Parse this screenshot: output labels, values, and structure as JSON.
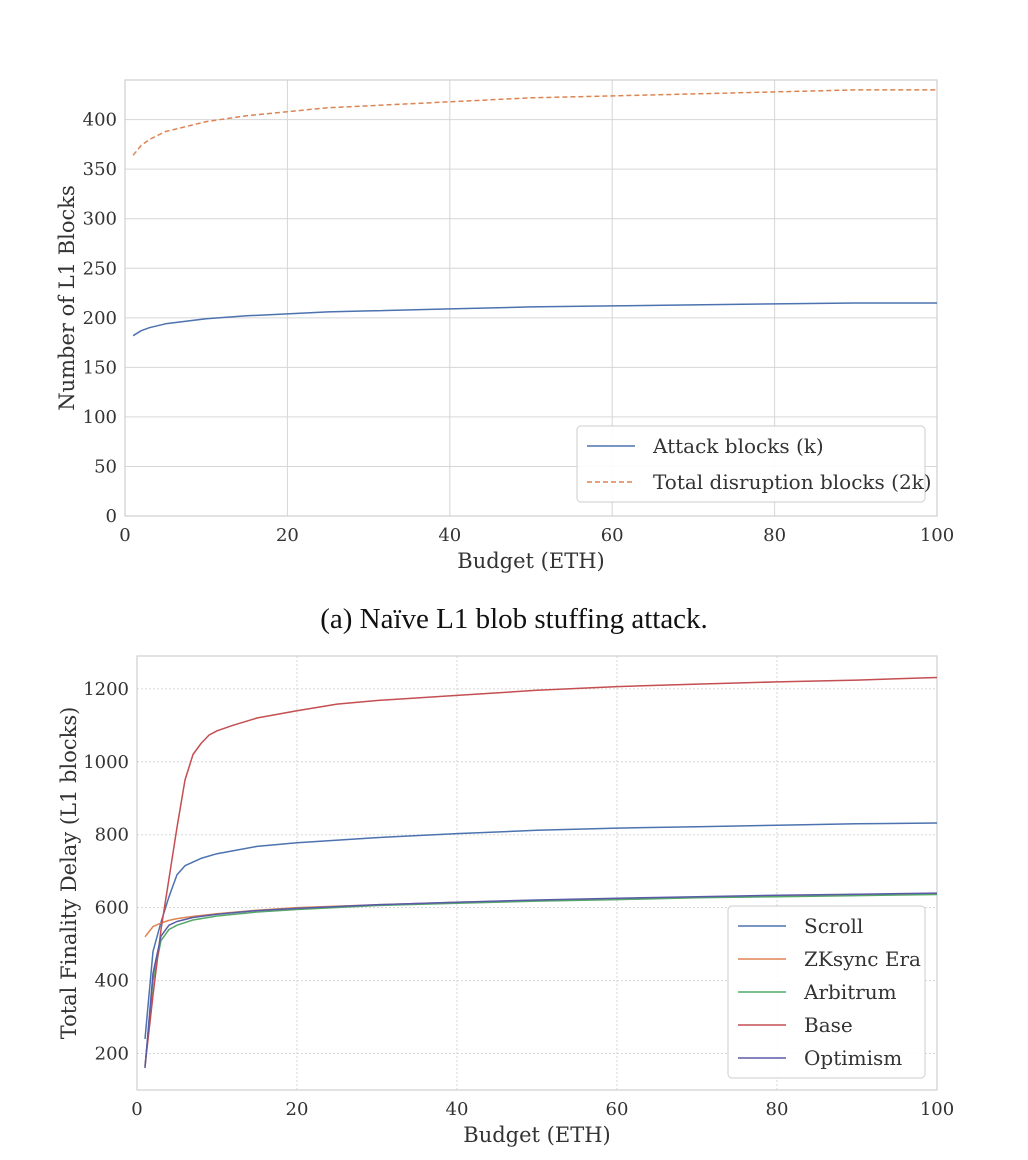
{
  "caption_a": "(a) Naïve L1 blob stuffing attack.",
  "chart_data": [
    {
      "id": "a",
      "type": "line",
      "title": "",
      "xlabel": "Budget (ETH)",
      "ylabel": "Number of L1 Blocks",
      "xlim": [
        0,
        100
      ],
      "ylim": [
        0,
        440
      ],
      "xticks": [
        0,
        20,
        40,
        60,
        80,
        100
      ],
      "yticks": [
        0,
        50,
        100,
        150,
        200,
        250,
        300,
        350,
        400
      ],
      "grid": true,
      "legend": "bottom-right",
      "colors": {
        "line1": "#4c72b0",
        "line2": "#dd8452",
        "grid": "#d6d6d6",
        "axis": "#cfcfcf"
      },
      "series": [
        {
          "name": "Attack blocks (k)",
          "style": "solid",
          "color": "#4c72b0",
          "x": [
            1,
            2,
            3,
            5,
            7,
            10,
            15,
            20,
            25,
            30,
            40,
            50,
            60,
            70,
            80,
            90,
            100
          ],
          "values": [
            182,
            187,
            190,
            194,
            196,
            199,
            202,
            204,
            206,
            207,
            209,
            211,
            212,
            213,
            214,
            215,
            215
          ]
        },
        {
          "name": "Total disruption blocks (2k)",
          "style": "dashed",
          "color": "#dd8452",
          "x": [
            1,
            2,
            3,
            5,
            7,
            10,
            15,
            20,
            25,
            30,
            40,
            50,
            60,
            70,
            80,
            90,
            100
          ],
          "values": [
            364,
            374,
            380,
            388,
            392,
            398,
            404,
            408,
            412,
            414,
            418,
            422,
            424,
            426,
            428,
            430,
            430
          ]
        }
      ]
    },
    {
      "id": "b",
      "type": "line",
      "title": "",
      "xlabel": "Budget (ETH)",
      "ylabel": "Total Finality Delay (L1 blocks)",
      "xlim": [
        0,
        100
      ],
      "ylim": [
        100,
        1290
      ],
      "xticks": [
        0,
        20,
        40,
        60,
        80,
        100
      ],
      "yticks": [
        200,
        400,
        600,
        800,
        1000,
        1200
      ],
      "grid": true,
      "legend": "bottom-right",
      "colors": {
        "grid": "#d6d6d6",
        "axis": "#cfcfcf"
      },
      "series": [
        {
          "name": "Scroll",
          "color": "#4c72b0",
          "x": [
            1,
            2,
            3,
            4,
            5,
            6,
            8,
            10,
            15,
            20,
            30,
            40,
            50,
            60,
            70,
            80,
            90,
            100
          ],
          "values": [
            240,
            480,
            560,
            630,
            690,
            715,
            735,
            748,
            768,
            778,
            792,
            803,
            812,
            818,
            822,
            826,
            830,
            832
          ]
        },
        {
          "name": "ZKsync Era",
          "color": "#dd8452",
          "x": [
            1,
            2,
            3,
            4,
            5,
            7,
            10,
            15,
            20,
            30,
            40,
            50,
            60,
            70,
            80,
            90,
            100
          ],
          "values": [
            520,
            548,
            558,
            565,
            570,
            576,
            583,
            593,
            600,
            608,
            615,
            620,
            624,
            628,
            632,
            636,
            638
          ]
        },
        {
          "name": "Arbitrum",
          "color": "#55a868",
          "x": [
            1,
            2,
            3,
            4,
            5,
            7,
            10,
            15,
            20,
            30,
            40,
            50,
            60,
            70,
            80,
            90,
            100
          ],
          "values": [
            165,
            400,
            510,
            540,
            552,
            566,
            577,
            588,
            595,
            606,
            612,
            618,
            622,
            627,
            630,
            633,
            636
          ]
        },
        {
          "name": "Base",
          "color": "#c44e52",
          "x": [
            1,
            2,
            3,
            4,
            5,
            6,
            7,
            8,
            9,
            10,
            12,
            15,
            20,
            25,
            30,
            40,
            50,
            60,
            70,
            80,
            90,
            100
          ],
          "values": [
            165,
            360,
            540,
            680,
            820,
            950,
            1020,
            1050,
            1073,
            1085,
            1100,
            1120,
            1140,
            1158,
            1168,
            1182,
            1196,
            1206,
            1213,
            1219,
            1224,
            1231
          ]
        },
        {
          "name": "Optimism",
          "color": "#5a5ba8",
          "x": [
            1,
            2,
            3,
            4,
            5,
            7,
            10,
            15,
            20,
            30,
            40,
            50,
            60,
            70,
            80,
            90,
            100
          ],
          "values": [
            160,
            420,
            522,
            552,
            562,
            573,
            582,
            592,
            598,
            608,
            615,
            621,
            626,
            630,
            634,
            637,
            640
          ]
        }
      ]
    }
  ]
}
